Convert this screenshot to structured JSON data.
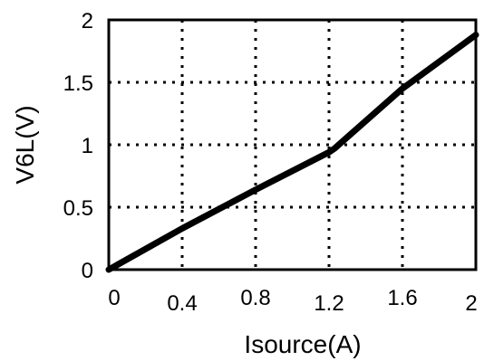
{
  "chart_data": {
    "type": "line",
    "title": "",
    "xlabel": "Isource(A)",
    "ylabel": "V6L(V)",
    "xlim": [
      0,
      2
    ],
    "ylim": [
      0,
      2
    ],
    "x_ticks": [
      "0",
      "0.4",
      "0.8",
      "1.2",
      "1.6",
      "2"
    ],
    "y_ticks": [
      "0",
      "0.5",
      "1",
      "1.5",
      "2"
    ],
    "grid": true,
    "series": [
      {
        "x": [
          0,
          0.4,
          0.8,
          1.2,
          1.23,
          1.6,
          2.0
        ],
        "y": [
          0,
          0.33,
          0.64,
          0.94,
          0.97,
          1.45,
          1.88
        ],
        "color": "#000000"
      }
    ]
  }
}
